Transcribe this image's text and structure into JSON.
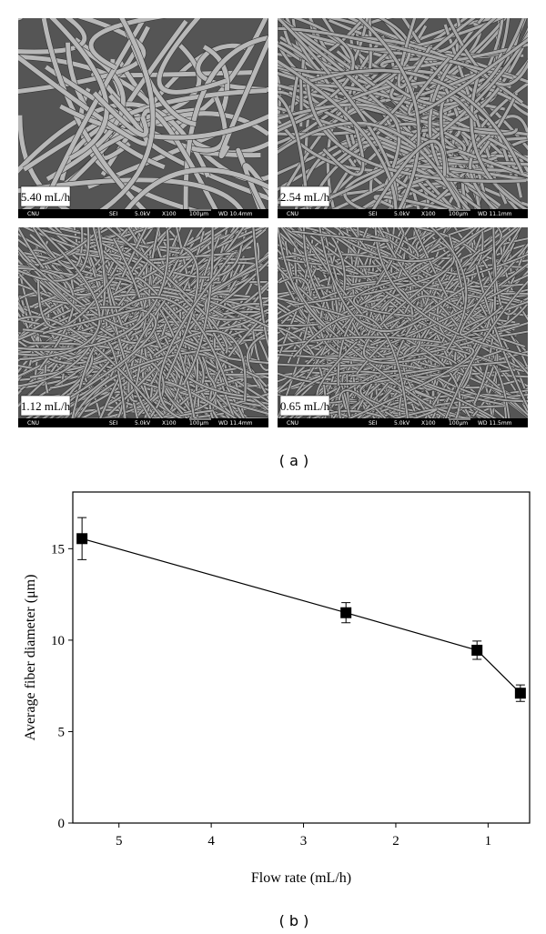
{
  "panels": [
    {
      "label": "5.40 mL/h",
      "info": [
        "CNU",
        "SEI",
        "5.0kV",
        "X100",
        "100μm",
        "WD 10.4mm"
      ]
    },
    {
      "label": "2.54 mL/h",
      "info": [
        "CNU",
        "SEI",
        "5.0kV",
        "X100",
        "100μm",
        "WD 11.1mm"
      ]
    },
    {
      "label": "1.12 mL/h",
      "info": [
        "CNU",
        "SEI",
        "5.0kV",
        "X100",
        "100μm",
        "WD 11.4mm"
      ]
    },
    {
      "label": "0.65 mL/h",
      "info": [
        "CNU",
        "SEI",
        "5.0kV",
        "X100",
        "100μm",
        "WD 11.5mm"
      ]
    }
  ],
  "caption_a": "( a )",
  "chart_data": {
    "type": "line",
    "x_label": "Flow rate (mL/h)",
    "y_label": "Average fiber diameter (μm)",
    "x": [
      5.4,
      2.54,
      1.12,
      0.65
    ],
    "values": [
      15.55,
      11.5,
      9.45,
      7.1
    ],
    "errors": [
      1.15,
      0.55,
      0.5,
      0.45
    ],
    "color": "#000000",
    "xlim": [
      5.5,
      0.55
    ],
    "ylim": [
      0,
      18.1
    ],
    "xticks": [
      5,
      4,
      3,
      2,
      1
    ],
    "yticks": [
      0,
      5,
      10,
      15
    ]
  },
  "caption_b": "( b )"
}
